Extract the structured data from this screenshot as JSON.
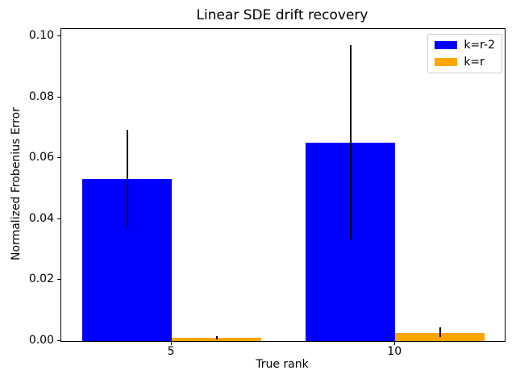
{
  "chart_data": {
    "type": "bar",
    "title": "Linear SDE drift recovery",
    "xlabel": "True rank",
    "ylabel": "Normalized Frobenius Error",
    "categories": [
      "5",
      "10"
    ],
    "x_positions": [
      0,
      1
    ],
    "series": [
      {
        "name": "k=r-2",
        "color": "#0000ff",
        "values": [
          0.0532,
          0.0651
        ],
        "error_low": [
          0.0371,
          0.0333
        ],
        "error_high": [
          0.0693,
          0.0971
        ]
      },
      {
        "name": "k=r",
        "color": "#ffa500",
        "values": [
          0.001,
          0.0027
        ],
        "error_low": [
          0.0005,
          0.0013
        ],
        "error_high": [
          0.0016,
          0.0045
        ]
      }
    ],
    "error_bar_color": "#000000",
    "bar_width": 0.4,
    "xlim": [
      -0.495,
      1.49
    ],
    "ylim": [
      0,
      0.1024
    ],
    "yticks": [
      {
        "value": 0.0,
        "label": "0.00"
      },
      {
        "value": 0.02,
        "label": "0.02"
      },
      {
        "value": 0.04,
        "label": "0.04"
      },
      {
        "value": 0.06,
        "label": "0.06"
      },
      {
        "value": 0.08,
        "label": "0.08"
      },
      {
        "value": 0.1,
        "label": "0.10"
      }
    ],
    "grid": false,
    "legend_position": "upper right",
    "spine_color": "#000000",
    "background_color": "#ffffff"
  }
}
